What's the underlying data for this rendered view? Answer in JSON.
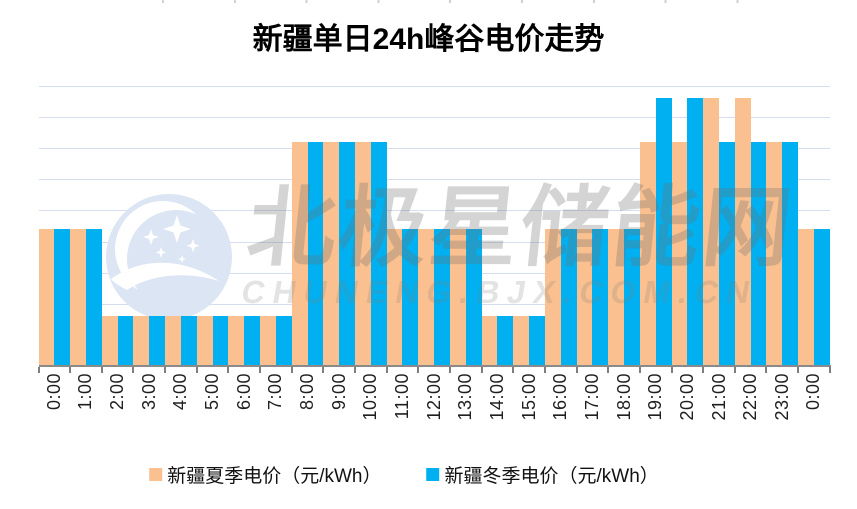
{
  "title": "新疆单日24h峰谷电价走势",
  "watermark": {
    "logo_icon": "bjx-crescent-stars-logo",
    "text_cn": "北极星储能网",
    "text_en": "CHUNENG.BJX.COM.CN"
  },
  "legend": {
    "items": [
      {
        "label": "新疆夏季电价（元/kWh）",
        "color": "#FAC08F"
      },
      {
        "label": "新疆冬季电价（元/kWh）",
        "color": "#00B0F0"
      }
    ]
  },
  "colors": {
    "summer_bar": "#FAC08F",
    "winter_bar": "#00B0F0",
    "gridline": "#D5DEF0",
    "axis": "#8A8A8A",
    "tick": "#7F7F7F",
    "title_text": "#000000",
    "axis_label_text": "#1F1F1F"
  },
  "chart_data": {
    "type": "bar",
    "title": "新疆单日24h峰谷电价走势",
    "categories": [
      "0:00",
      "1:00",
      "2:00",
      "3:00",
      "4:00",
      "5:00",
      "6:00",
      "7:00",
      "8:00",
      "9:00",
      "10:00",
      "11:00",
      "12:00",
      "13:00",
      "14:00",
      "15:00",
      "16:00",
      "17:00",
      "18:00",
      "19:00",
      "20:00",
      "21:00",
      "22:00",
      "23:00",
      "0:00"
    ],
    "series": [
      {
        "name": "新疆夏季电价（元/kWh）",
        "color": "#FAC08F",
        "values": [
          0.22,
          0.22,
          0.08,
          0.08,
          0.08,
          0.08,
          0.08,
          0.08,
          0.36,
          0.36,
          0.36,
          0.22,
          0.22,
          0.22,
          0.08,
          0.08,
          0.22,
          0.22,
          0.22,
          0.36,
          0.36,
          0.43,
          0.43,
          0.36,
          0.22
        ]
      },
      {
        "name": "新疆冬季电价（元/kWh）",
        "color": "#00B0F0",
        "values": [
          0.22,
          0.22,
          0.08,
          0.08,
          0.08,
          0.08,
          0.08,
          0.08,
          0.36,
          0.36,
          0.36,
          0.22,
          0.22,
          0.22,
          0.08,
          0.08,
          0.22,
          0.22,
          0.22,
          0.43,
          0.43,
          0.36,
          0.36,
          0.36,
          0.22
        ]
      }
    ],
    "xlabel": "",
    "ylabel": "",
    "ylim": [
      0,
      0.45
    ],
    "gridline_count": 9,
    "grid": true,
    "y_axis_labels_visible": false,
    "bar_gap": 0,
    "legend_position": "bottom"
  }
}
